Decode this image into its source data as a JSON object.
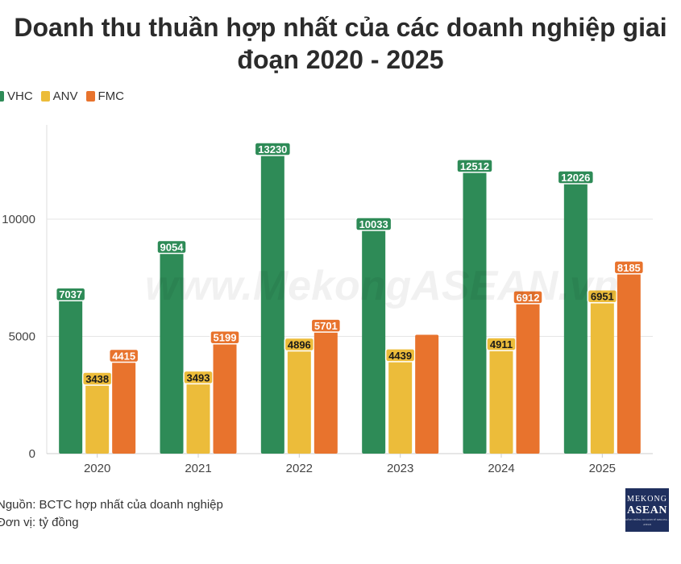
{
  "title_line1": "Doanh thu thuần hợp nhất của các doanh nghiệp giai",
  "title_line2": "đoạn 2020 - 2025",
  "watermark": "www.MekongASEAN.vn",
  "footer": {
    "source": "Nguồn: BCTC hợp nhất của doanh nghiệp",
    "unit": "Đơn vị: tỷ đồng"
  },
  "logo": {
    "line1": "MEKONG",
    "line2": "ASEAN",
    "line3": "KÊNH THÔNG TIN KINH TẾ MEKONG - ASEAN"
  },
  "colors": {
    "VHC": "#2e8b57",
    "ANV": "#ecbc3a",
    "FMC": "#e8732d"
  },
  "chart_data": {
    "type": "bar",
    "title": "Doanh thu thuần hợp nhất của các doanh nghiệp giai đoạn 2020 - 2025",
    "categories": [
      "2020",
      "2021",
      "2022",
      "2023",
      "2024",
      "2025"
    ],
    "series": [
      {
        "name": "VHC",
        "values": [
          7037,
          9054,
          13230,
          10033,
          12512,
          12026
        ]
      },
      {
        "name": "ANV",
        "values": [
          3438,
          3493,
          4896,
          4439,
          4911,
          6951
        ]
      },
      {
        "name": "FMC",
        "values": [
          4415,
          5199,
          5701,
          5068,
          6912,
          8185
        ]
      }
    ],
    "labels_shown": [
      [
        true,
        true,
        true,
        true,
        true,
        true
      ],
      [
        true,
        true,
        true,
        true,
        true,
        true
      ],
      [
        true,
        true,
        true,
        false,
        true,
        true
      ]
    ],
    "yticks": [
      0,
      5000,
      10000
    ],
    "ytick_labels": [
      "0",
      "5000",
      "10000"
    ],
    "ylim": [
      0,
      14000
    ],
    "legend_position": "top-left",
    "grid": true
  }
}
